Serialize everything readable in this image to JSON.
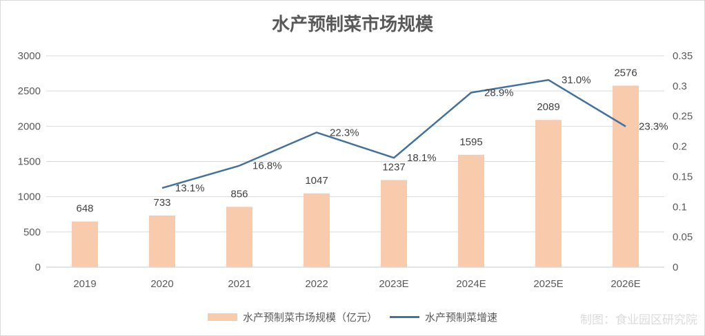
{
  "title": "水产预制菜市场规模",
  "watermark": "制图：食业园区研究院",
  "colors": {
    "bar": "#F8CBAD",
    "line": "#41719C",
    "grid": "#D9D9D9",
    "axis_line": "#C9C9C9",
    "tick_text": "#595959",
    "label_text": "#404040",
    "watermark_text": "#DBDBDB"
  },
  "legend": [
    {
      "label": "水产预制菜市场规模（亿元）",
      "type": "bar"
    },
    {
      "label": "水产预制菜增速",
      "type": "line"
    }
  ],
  "chart_data": {
    "type": "bar",
    "subtype": "bar+line combo, dual axis",
    "title": "水产预制菜市场规模",
    "categories": [
      "2019",
      "2020",
      "2021",
      "2022",
      "2023E",
      "2024E",
      "2025E",
      "2026E"
    ],
    "series": [
      {
        "name": "水产预制菜市场规模（亿元）",
        "chart_type": "bar",
        "axis": "left",
        "values": [
          648,
          733,
          856,
          1047,
          1237,
          1595,
          2089,
          2576
        ],
        "data_labels": [
          "648",
          "733",
          "856",
          "1047",
          "1237",
          "1595",
          "2089",
          "2576"
        ]
      },
      {
        "name": "水产预制菜增速",
        "chart_type": "line",
        "axis": "right",
        "values": [
          null,
          0.131,
          0.168,
          0.223,
          0.181,
          0.289,
          0.31,
          0.233
        ],
        "data_labels": [
          null,
          "13.1%",
          "16.8%",
          "22.3%",
          "18.1%",
          "28.9%",
          "31.0%",
          "23.3%"
        ]
      }
    ],
    "left_axis": {
      "min": 0,
      "max": 3000,
      "step": 500,
      "ticks": [
        0,
        500,
        1000,
        1500,
        2000,
        2500,
        3000
      ]
    },
    "right_axis": {
      "min": 0,
      "max": 0.35,
      "step": 0.05,
      "ticks": [
        0,
        0.05,
        0.1,
        0.15,
        0.2,
        0.25,
        0.3,
        0.35
      ]
    },
    "grid": true,
    "legend_position": "bottom"
  }
}
